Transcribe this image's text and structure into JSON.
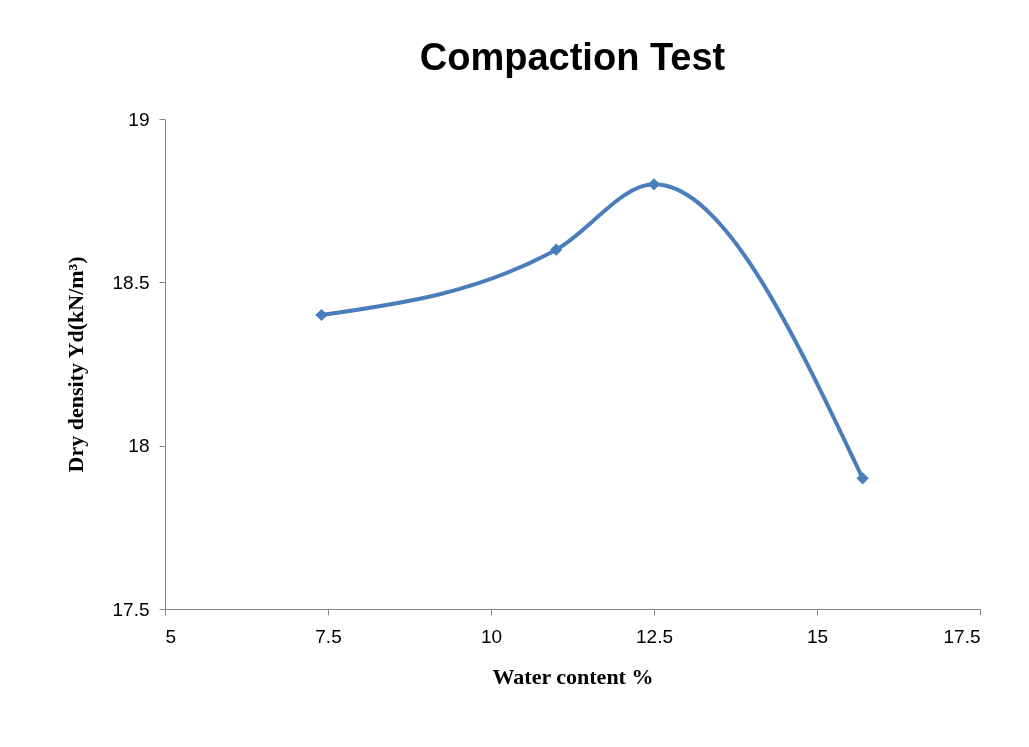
{
  "chart_data": {
    "type": "line",
    "title": "Compaction Test",
    "xlabel": "Water content %",
    "ylabel": "Dry density Yd(kN/m³)",
    "x": [
      7.4,
      11,
      12.5,
      15.7
    ],
    "series": [
      {
        "color": "#4a7ebb",
        "values": [
          18.4,
          18.6,
          18.8,
          17.9
        ]
      }
    ],
    "xlim": [
      5,
      17.5
    ],
    "xticks": [
      5,
      7.5,
      10,
      12.5,
      15,
      17.5
    ],
    "ylim": [
      17.5,
      19
    ],
    "yticks": [
      17.5,
      18,
      18.5,
      19
    ],
    "grid": false,
    "legend": false,
    "marker": "diamond",
    "line_style": "solid"
  }
}
